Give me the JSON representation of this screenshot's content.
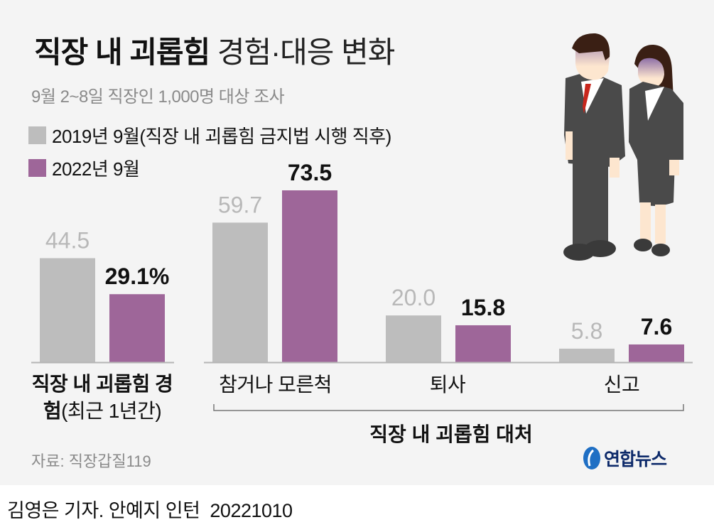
{
  "title": {
    "bold": "직장 내 괴롭힘",
    "light": "경험·대응 변화"
  },
  "subtitle": "9월 2~8일 직장인 1,000명 대상 조사",
  "source": "자료: 직장갑질119",
  "logo": "연합뉴스",
  "byline": {
    "author": "김영은 기자. 안예지 인턴",
    "date": "20221010"
  },
  "colors": {
    "series_2019": "#bdbdbd",
    "series_2022": "#9e6699",
    "background": "#f4f4f4"
  },
  "chart_data": {
    "type": "bar",
    "categories": [
      "직장 내 괴롭힘 경험(최근 1년간)",
      "참거나 모른척",
      "퇴사",
      "신고"
    ],
    "category_labels": {
      "experience_bold": "직장 내 괴롭힘 경험",
      "experience_light": "(최근 1년간)",
      "others": [
        "참거나 모른척",
        "퇴사",
        "신고"
      ]
    },
    "group_label": "직장 내 괴롭힘 대처",
    "unit": "%",
    "series": [
      {
        "name": "2019년 9월(직장 내 괴롭힘 금지법 시행 직후)",
        "values": [
          44.5,
          59.7,
          20.0,
          5.8
        ],
        "labels": [
          "44.5",
          "59.7",
          "20.0",
          "5.8"
        ]
      },
      {
        "name": "2022년 9월",
        "values": [
          29.1,
          73.5,
          15.8,
          7.6
        ],
        "labels": [
          "29.1%",
          "73.5",
          "15.8",
          "7.6"
        ]
      }
    ],
    "ylim": [
      0,
      80
    ],
    "grid": false,
    "legend": "top-left"
  }
}
